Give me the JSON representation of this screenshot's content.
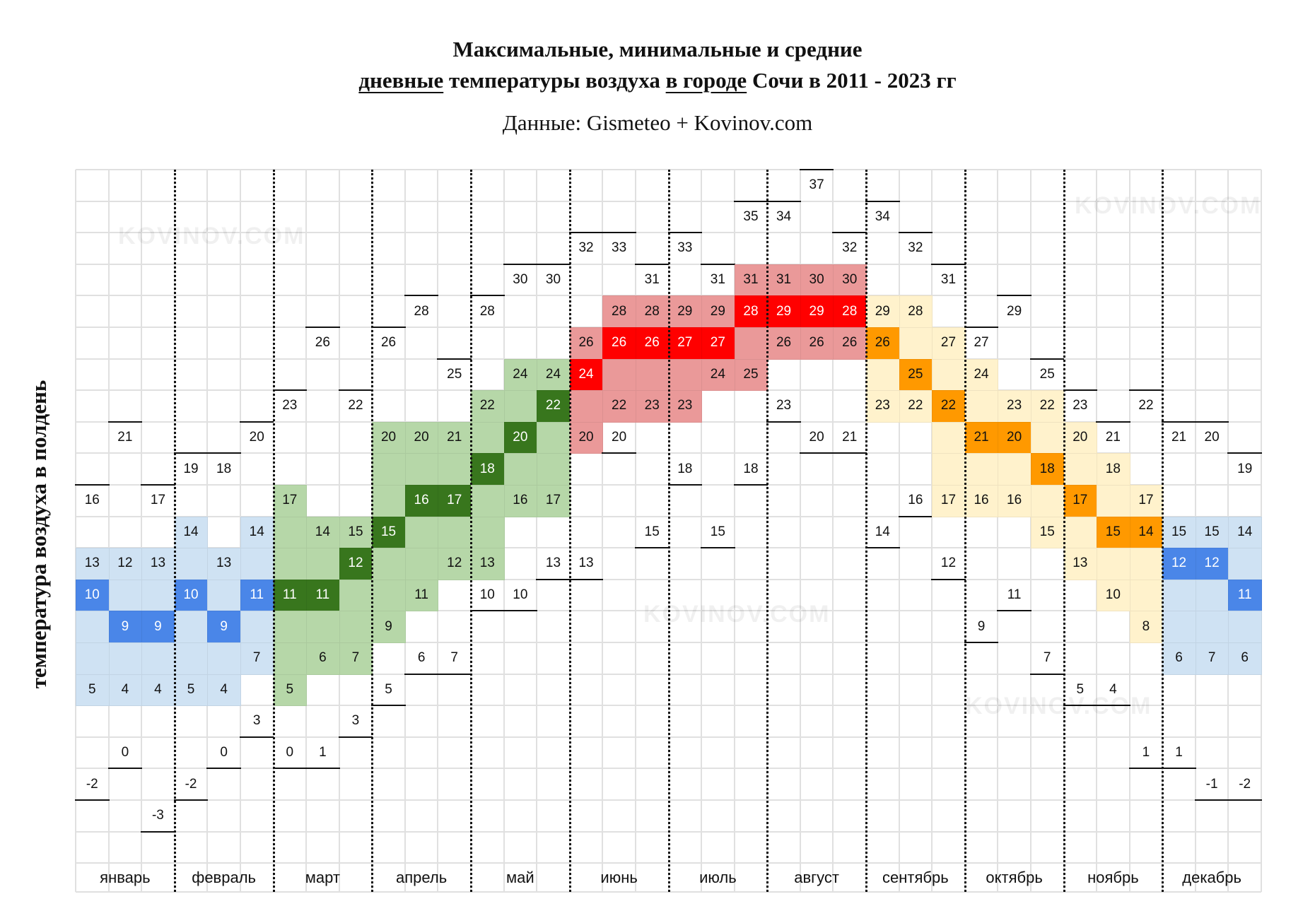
{
  "title": {
    "line1": "Максимальные, минимальные и средние",
    "line2_u1": "дневные",
    "line2_t1": " температуры воздуха ",
    "line2_u2": "в городе",
    "line2_t2": " Сочи в 2011 - 2023 гг",
    "subtitle": "Данные: Gismeteo + Kovinov.com"
  },
  "watermark": "KOVINOV.COM",
  "chart_data": {
    "type": "heatmap",
    "title": "Максимальные, минимальные и средние дневные температуры воздуха в городе Сочи в 2011 - 2023 гг",
    "ylabel": "температура воздуха в полдень",
    "xlabel": "",
    "ylim": [
      -5,
      37
    ],
    "value_order": [
      "max",
      "upper",
      "avg",
      "lower",
      "min"
    ],
    "colors": {
      "winter": {
        "dark": "#4a86e8",
        "light": "#cfe2f3",
        "text": "#ffffff"
      },
      "spring": {
        "dark": "#38761d",
        "light": "#b6d7a8",
        "text": "#ffffff"
      },
      "summer": {
        "dark": "#ff0000",
        "light": "#ea9999",
        "text": "#ffffff"
      },
      "autumn": {
        "dark": "#ff9900",
        "light": "#fff2cc",
        "text": "#111111"
      }
    },
    "months": [
      {
        "name": "январь",
        "season": "winter",
        "decades": [
          [
            16,
            13,
            10,
            5,
            -2
          ],
          [
            21,
            12,
            9,
            4,
            0
          ],
          [
            17,
            13,
            9,
            4,
            -3
          ]
        ]
      },
      {
        "name": "февраль",
        "season": "winter",
        "decades": [
          [
            19,
            14,
            10,
            5,
            -2
          ],
          [
            18,
            13,
            9,
            4,
            0
          ],
          [
            20,
            14,
            11,
            7,
            3
          ]
        ]
      },
      {
        "name": "март",
        "season": "spring",
        "decades": [
          [
            23,
            17,
            11,
            5,
            0
          ],
          [
            26,
            14,
            11,
            6,
            1
          ],
          [
            22,
            15,
            12,
            7,
            3
          ]
        ]
      },
      {
        "name": "апрель",
        "season": "spring",
        "decades": [
          [
            26,
            20,
            15,
            9,
            5
          ],
          [
            28,
            20,
            16,
            11,
            6
          ],
          [
            25,
            21,
            17,
            12,
            7
          ]
        ]
      },
      {
        "name": "май",
        "season": "spring",
        "decades": [
          [
            28,
            22,
            18,
            13,
            10
          ],
          [
            30,
            24,
            20,
            16,
            10
          ],
          [
            30,
            24,
            22,
            17,
            13
          ]
        ]
      },
      {
        "name": "июнь",
        "season": "summer",
        "decades": [
          [
            32,
            26,
            24,
            20,
            13
          ],
          [
            33,
            28,
            26,
            22,
            20
          ],
          [
            31,
            28,
            26,
            23,
            15
          ]
        ]
      },
      {
        "name": "июль",
        "season": "summer",
        "decades": [
          [
            33,
            29,
            27,
            23,
            18
          ],
          [
            31,
            29,
            27,
            24,
            15
          ],
          [
            35,
            31,
            28,
            25,
            18
          ]
        ]
      },
      {
        "name": "август",
        "season": "summer",
        "decades": [
          [
            34,
            31,
            29,
            26,
            23
          ],
          [
            37,
            30,
            29,
            26,
            20
          ],
          [
            32,
            30,
            28,
            26,
            21
          ]
        ]
      },
      {
        "name": "сентябрь",
        "season": "autumn",
        "decades": [
          [
            34,
            29,
            26,
            23,
            14
          ],
          [
            32,
            28,
            25,
            22,
            16
          ],
          [
            31,
            27,
            22,
            17,
            12
          ]
        ]
      },
      {
        "name": "октябрь",
        "season": "autumn",
        "decades": [
          [
            27,
            24,
            21,
            16,
            9
          ],
          [
            29,
            23,
            20,
            16,
            11
          ],
          [
            25,
            22,
            18,
            15,
            7
          ]
        ]
      },
      {
        "name": "ноябрь",
        "season": "autumn",
        "decades": [
          [
            23,
            20,
            17,
            13,
            5
          ],
          [
            21,
            18,
            15,
            10,
            4
          ],
          [
            22,
            17,
            14,
            8,
            1
          ]
        ]
      },
      {
        "name": "декабрь",
        "season": "winter",
        "decades": [
          [
            21,
            15,
            12,
            6,
            1
          ],
          [
            20,
            15,
            12,
            7,
            -1
          ],
          [
            19,
            14,
            11,
            6,
            -2
          ]
        ]
      }
    ]
  }
}
